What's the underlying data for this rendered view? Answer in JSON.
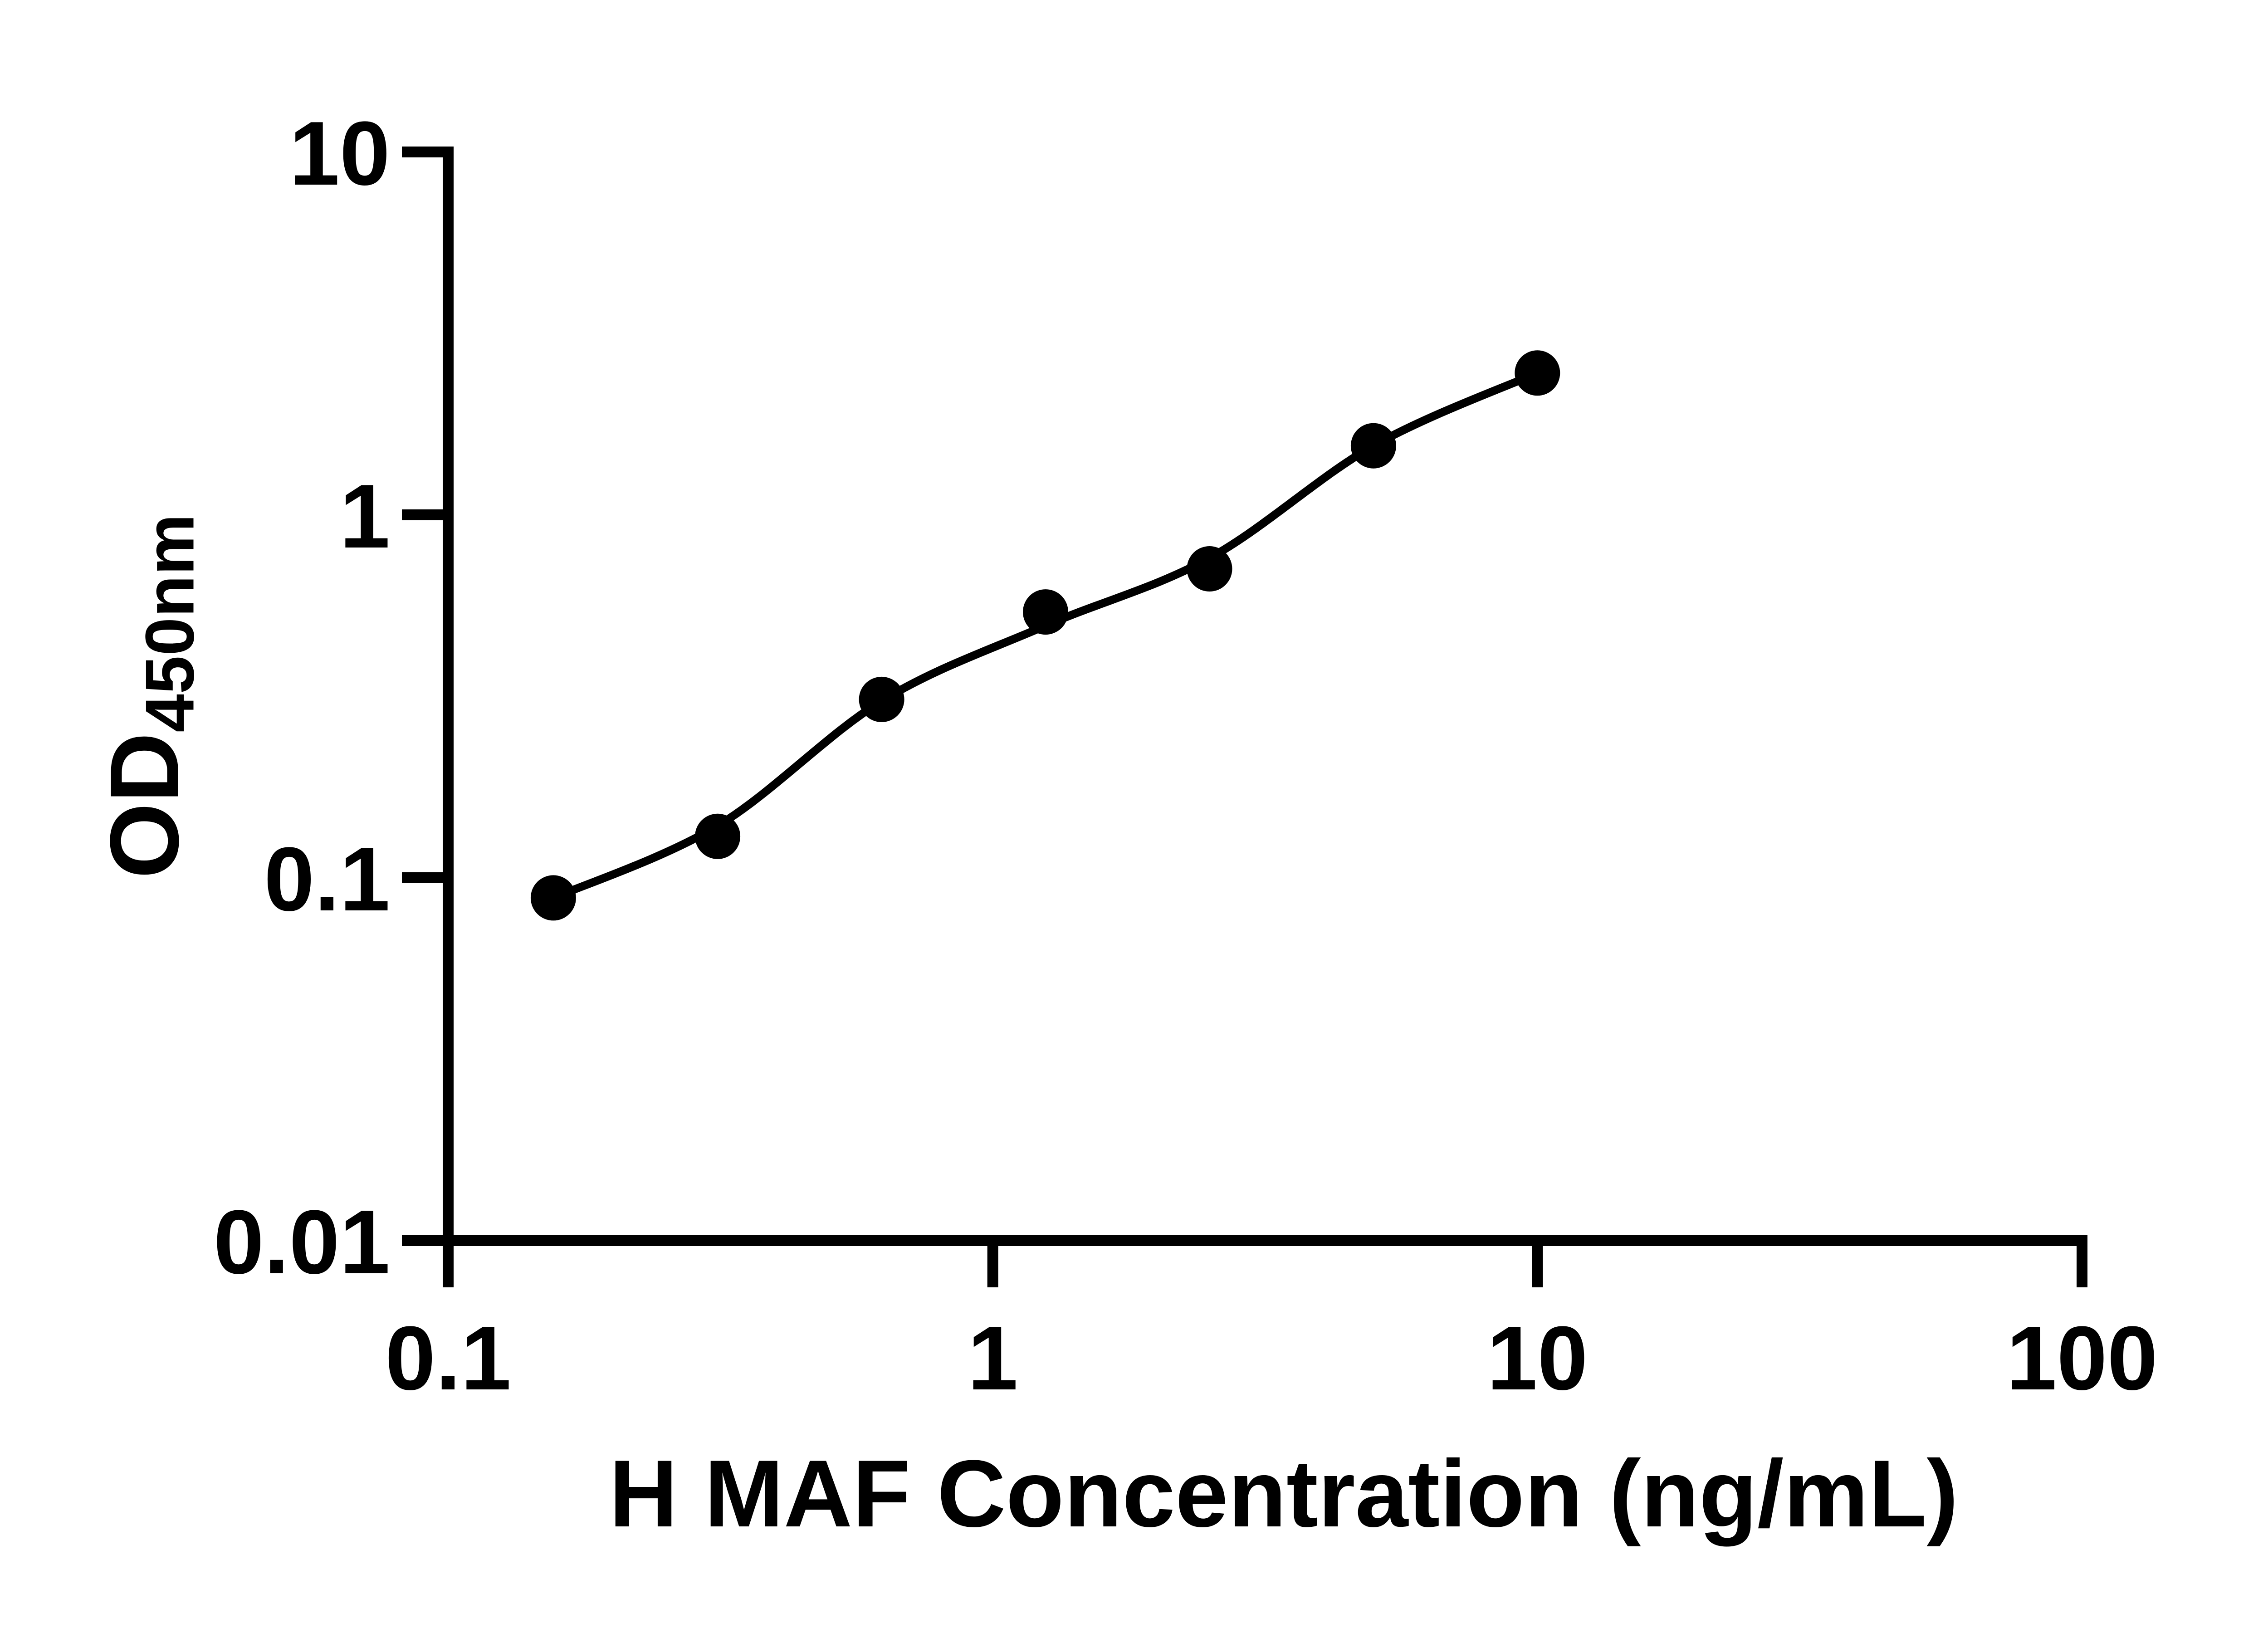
{
  "page": {
    "background_color": "#ffffff"
  },
  "chart_data": {
    "type": "scatter",
    "title": "",
    "xlabel": "H MAF Concentration (ng/mL)",
    "ylabel": "OD450nm",
    "ylabel_main": "OD",
    "ylabel_sub": "450nm",
    "x_scale": "log",
    "y_scale": "log",
    "xlim": [
      0.1,
      100
    ],
    "ylim": [
      0.01,
      10
    ],
    "grid": false,
    "legend": false,
    "axis_color": "#000000",
    "marker_color": "#000000",
    "line_color": "#000000",
    "x_ticks": [
      {
        "value": 0.1,
        "label": "0.1"
      },
      {
        "value": 1,
        "label": "1"
      },
      {
        "value": 10,
        "label": "10"
      },
      {
        "value": 100,
        "label": "100"
      }
    ],
    "y_ticks": [
      {
        "value": 0.01,
        "label": "0.01"
      },
      {
        "value": 0.1,
        "label": "0.1"
      },
      {
        "value": 1,
        "label": "1"
      },
      {
        "value": 10,
        "label": "10"
      }
    ],
    "points": [
      {
        "x": 0.156,
        "y": 0.088
      },
      {
        "x": 0.3125,
        "y": 0.13
      },
      {
        "x": 0.625,
        "y": 0.31
      },
      {
        "x": 1.25,
        "y": 0.54
      },
      {
        "x": 2.5,
        "y": 0.71
      },
      {
        "x": 5,
        "y": 1.55
      },
      {
        "x": 10,
        "y": 2.46
      }
    ],
    "fit_curve": [
      {
        "x": 0.156,
        "y": 0.088
      },
      {
        "x": 0.3125,
        "y": 0.139
      },
      {
        "x": 0.625,
        "y": 0.307
      },
      {
        "x": 1.25,
        "y": 0.495
      },
      {
        "x": 2.5,
        "y": 0.76
      },
      {
        "x": 5,
        "y": 1.55
      },
      {
        "x": 10,
        "y": 2.46
      }
    ]
  }
}
